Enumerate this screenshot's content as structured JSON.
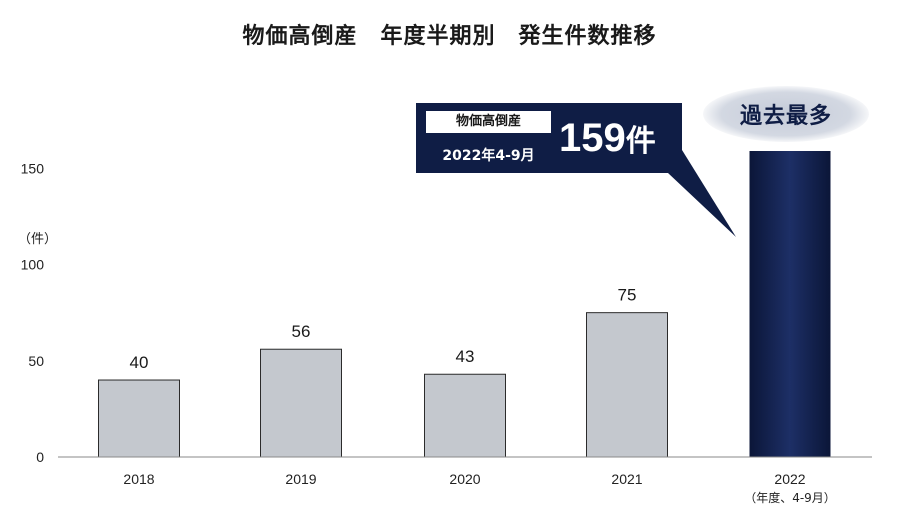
{
  "title": "物価高倒産　年度半期別　発生件数推移",
  "unit_label": "（件）",
  "callout": {
    "tag": "物価高倒産",
    "period": "2022年4-9月",
    "value": "159",
    "suffix": "件"
  },
  "badge": "過去最多",
  "colors": {
    "bar_default": "#c4c8ce",
    "bar_highlight": "#0f1d45",
    "callout_bg": "#0f1d45"
  },
  "chart_data": {
    "type": "bar",
    "categories": [
      "2018",
      "2019",
      "2020",
      "2021",
      "2022"
    ],
    "category_sublabels": [
      "",
      "",
      "",
      "",
      "（年度、4-9月）"
    ],
    "values": [
      40,
      56,
      43,
      75,
      159
    ],
    "data_labels": [
      "40",
      "56",
      "43",
      "75",
      ""
    ],
    "highlight_index": 4,
    "ylim": [
      0,
      159
    ],
    "yticks": [
      0,
      50,
      100,
      150
    ],
    "xlabel": "",
    "ylabel": "（件）",
    "grid": false
  }
}
